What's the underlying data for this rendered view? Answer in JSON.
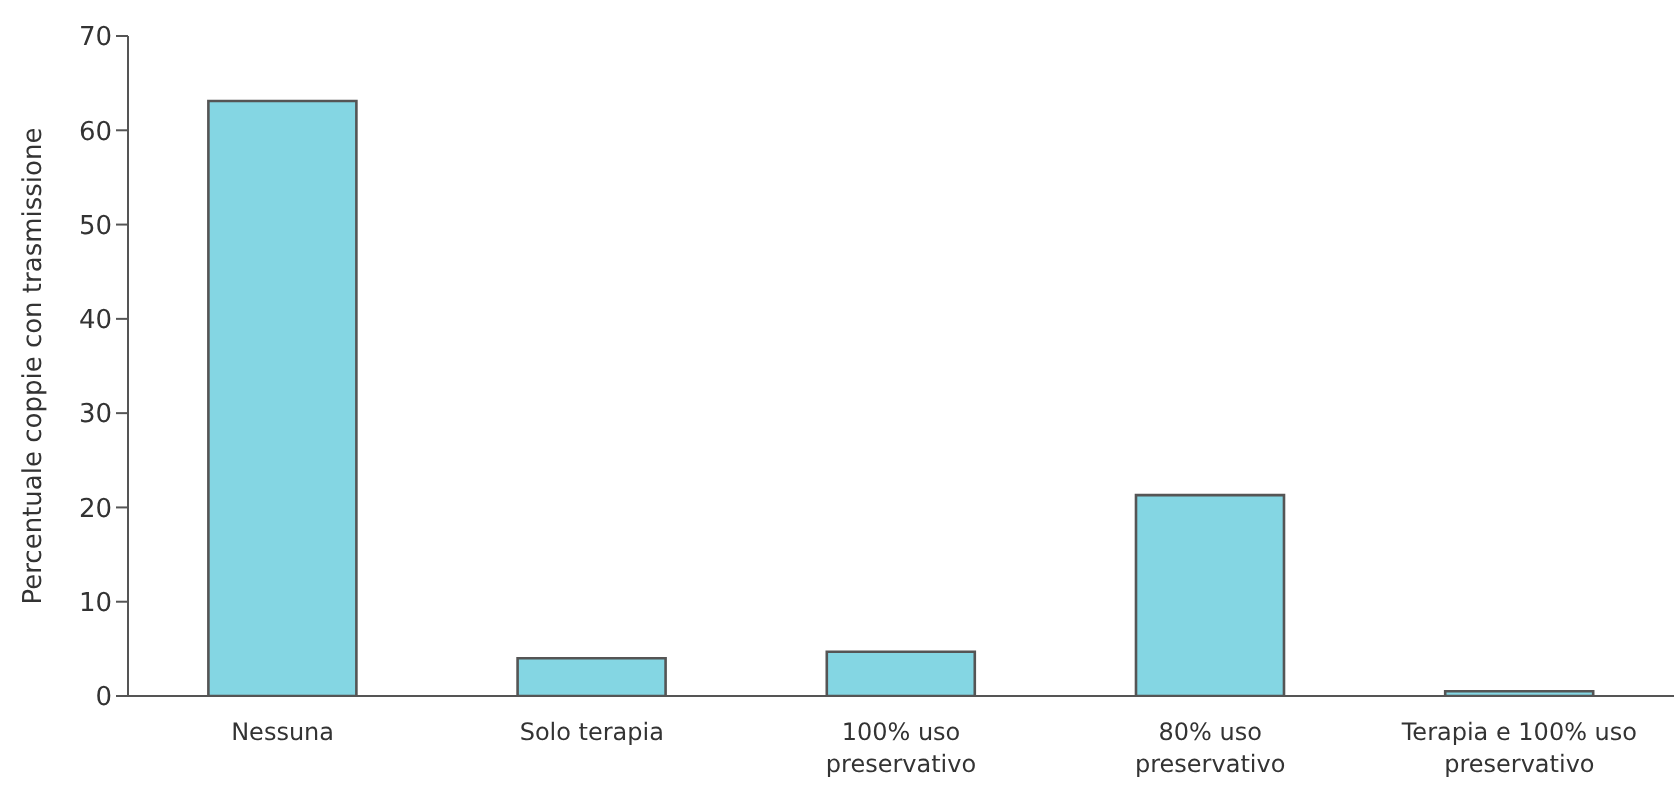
{
  "chart_data": {
    "type": "bar",
    "ylabel": "Percentuale coppie con trasmissione",
    "categories": [
      "Nessuna",
      "Solo terapia",
      "100% uso preservativo",
      "80% uso preservativo",
      "Terapia e 100% uso preservativo"
    ],
    "values": [
      63.1,
      4.0,
      4.7,
      21.3,
      0.5
    ],
    "color": "#84d6e3",
    "ylim": [
      0,
      70
    ],
    "yticks": [
      0,
      10,
      20,
      30,
      40,
      50,
      60,
      70
    ],
    "grid": false
  }
}
